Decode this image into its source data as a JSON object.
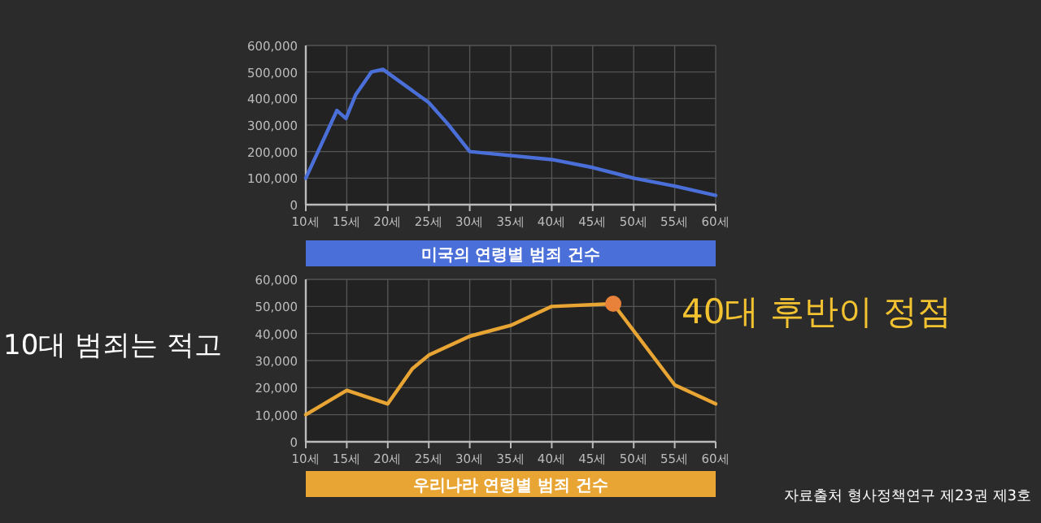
{
  "chart_data": [
    {
      "type": "line",
      "title": "미국의 연령별 범죄 건수",
      "xlim": [
        10,
        60
      ],
      "ylim": [
        0,
        600000
      ],
      "grid": true,
      "marker": "none",
      "xticks": [
        {
          "value": 10,
          "label": "10세"
        },
        {
          "value": 15,
          "label": "15세"
        },
        {
          "value": 20,
          "label": "20세"
        },
        {
          "value": 25,
          "label": "25세"
        },
        {
          "value": 30,
          "label": "30세"
        },
        {
          "value": 35,
          "label": "35세"
        },
        {
          "value": 40,
          "label": "40세"
        },
        {
          "value": 45,
          "label": "45세"
        },
        {
          "value": 50,
          "label": "50세"
        },
        {
          "value": 55,
          "label": "55세"
        },
        {
          "value": 60,
          "label": "60세"
        }
      ],
      "yticks": [
        {
          "value": 0,
          "label": "0"
        },
        {
          "value": 100000,
          "label": "100,000"
        },
        {
          "value": 200000,
          "label": "200,000"
        },
        {
          "value": 300000,
          "label": "300,000"
        },
        {
          "value": 400000,
          "label": "400,000"
        },
        {
          "value": 500000,
          "label": "500,000"
        },
        {
          "value": 600000,
          "label": "600,000"
        }
      ],
      "series": [
        {
          "color": "#4a6fd8",
          "x": [
            10,
            13.8,
            14.9,
            16.1,
            18,
            19.4,
            25,
            27.3,
            30,
            40,
            45,
            50,
            55,
            60
          ],
          "values": [
            100000,
            355000,
            325000,
            415000,
            500000,
            510000,
            385000,
            305000,
            200000,
            170000,
            140000,
            100000,
            70000,
            35000
          ]
        }
      ]
    },
    {
      "type": "line",
      "title": "우리나라 연령별 범죄 건수",
      "xlim": [
        10,
        60
      ],
      "ylim": [
        0,
        60000
      ],
      "grid": true,
      "marker": "none",
      "xticks": [
        {
          "value": 10,
          "label": "10세"
        },
        {
          "value": 15,
          "label": "15세"
        },
        {
          "value": 20,
          "label": "20세"
        },
        {
          "value": 25,
          "label": "25세"
        },
        {
          "value": 30,
          "label": "30세"
        },
        {
          "value": 35,
          "label": "35세"
        },
        {
          "value": 40,
          "label": "40세"
        },
        {
          "value": 45,
          "label": "45세"
        },
        {
          "value": 50,
          "label": "50세"
        },
        {
          "value": 55,
          "label": "55세"
        },
        {
          "value": 60,
          "label": "60세"
        }
      ],
      "yticks": [
        {
          "value": 0,
          "label": "0"
        },
        {
          "value": 10000,
          "label": "10,000"
        },
        {
          "value": 20000,
          "label": "20,000"
        },
        {
          "value": 30000,
          "label": "30,000"
        },
        {
          "value": 40000,
          "label": "40,000"
        },
        {
          "value": 50000,
          "label": "50,000"
        },
        {
          "value": 60000,
          "label": "60,000"
        }
      ],
      "series": [
        {
          "color": "#e8a534",
          "x": [
            10,
            15,
            20,
            23,
            25,
            30,
            35,
            40,
            47.5,
            55,
            60
          ],
          "values": [
            10000,
            19000,
            14000,
            27000,
            32000,
            39000,
            43000,
            50000,
            51000,
            21000,
            14000
          ]
        },
        {
          "type": "scatter",
          "marker": "circle",
          "color": "#e8823a",
          "x": [
            47.5
          ],
          "values": [
            51000
          ]
        }
      ],
      "annotations": [
        "10대 범죄는 적고",
        {
          "text": "40대 후반이 정점",
          "x": 47.5,
          "y": 51000
        },
        "자료출처 형사정책연구 제23권 제3호"
      ]
    }
  ]
}
